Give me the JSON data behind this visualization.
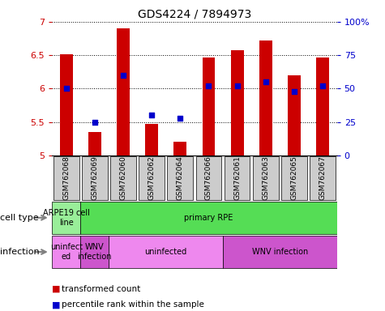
{
  "title": "GDS4224 / 7894973",
  "samples": [
    "GSM762068",
    "GSM762069",
    "GSM762060",
    "GSM762062",
    "GSM762064",
    "GSM762066",
    "GSM762061",
    "GSM762063",
    "GSM762065",
    "GSM762067"
  ],
  "transformed_count": [
    6.52,
    5.35,
    6.9,
    5.47,
    5.2,
    6.47,
    6.57,
    6.72,
    6.2,
    6.47
  ],
  "percentile_rank": [
    50,
    25,
    60,
    30,
    28,
    52,
    52,
    55,
    48,
    52
  ],
  "ylim": [
    5,
    7
  ],
  "yticks": [
    5,
    5.5,
    6,
    6.5,
    7
  ],
  "right_yticks": [
    0,
    25,
    50,
    75,
    100
  ],
  "right_ylim": [
    0,
    100
  ],
  "bar_color": "#cc0000",
  "dot_color": "#0000cc",
  "bar_width": 0.45,
  "cell_types": [
    {
      "label": "ARPE19 cell\nline",
      "start": 0,
      "end": 0,
      "color": "#99ee99"
    },
    {
      "label": "primary RPE",
      "start": 1,
      "end": 9,
      "color": "#55dd55"
    }
  ],
  "infections": [
    {
      "label": "uninfect\ned",
      "start": 0,
      "end": 0,
      "color": "#ee88ee"
    },
    {
      "label": "WNV\ninfection",
      "start": 1,
      "end": 1,
      "color": "#cc55cc"
    },
    {
      "label": "uninfected",
      "start": 2,
      "end": 5,
      "color": "#ee88ee"
    },
    {
      "label": "WNV infection",
      "start": 6,
      "end": 9,
      "color": "#cc55cc"
    }
  ],
  "legend_bar_label": "transformed count",
  "legend_dot_label": "percentile rank within the sample",
  "xlabel_cell_type": "cell type",
  "xlabel_infection": "infection",
  "tick_bg_color": "#cccccc"
}
